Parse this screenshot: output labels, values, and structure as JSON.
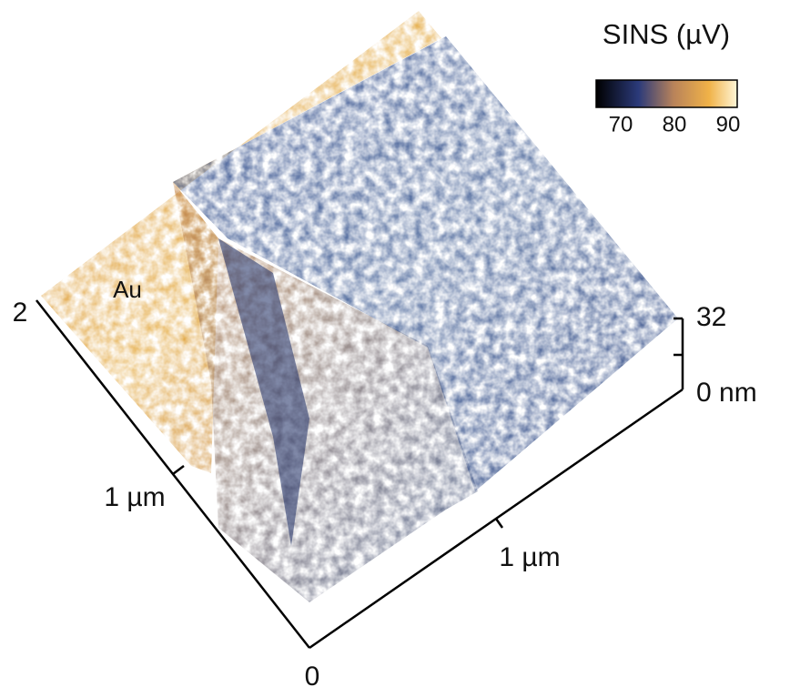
{
  "colorbar": {
    "title": "SINS (µV)",
    "ticks": [
      70,
      80,
      90
    ]
  },
  "annotation": "Au",
  "axes": {
    "left_ticks": [
      "2",
      "1 µm",
      "0"
    ],
    "right_ticks": [
      "1 µm"
    ],
    "z_ticks": [
      "32",
      "0 nm"
    ]
  }
}
